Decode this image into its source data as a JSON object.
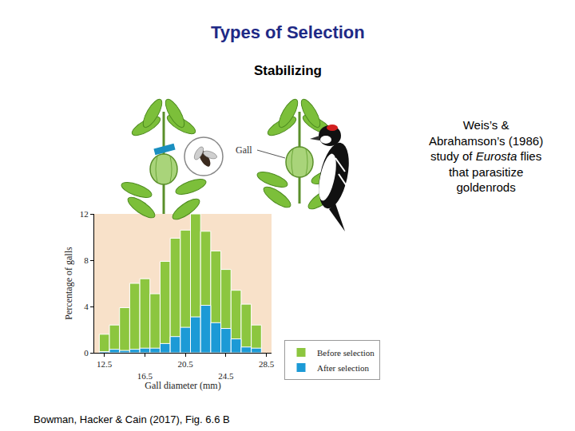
{
  "chart_data": {
    "type": "histogram",
    "x_label": "Gall diameter (mm)",
    "y_label": "Percentage of galls",
    "bins": [
      12,
      13,
      14,
      15,
      16,
      17,
      18,
      19,
      20,
      21,
      22,
      23,
      24,
      25,
      26,
      27,
      28
    ],
    "series": [
      {
        "name": "Before selection",
        "color": "#8cc63f",
        "values": [
          1.6,
          2.4,
          3.9,
          6.0,
          6.4,
          5.1,
          7.9,
          9.9,
          10.6,
          12,
          10.5,
          8.8,
          7.2,
          5.4,
          4.2,
          2.4
        ]
      },
      {
        "name": "After selection",
        "color": "#1c9ad6",
        "values": [
          0.1,
          0.3,
          0.2,
          0.3,
          0.4,
          0.4,
          0.8,
          1.4,
          2.2,
          3.1,
          4.1,
          2.6,
          2.1,
          1.2,
          0.5,
          0.4
        ]
      }
    ],
    "xlim": [
      11.5,
      29
    ],
    "xticks": [
      12.5,
      16.5,
      20.5,
      24.5,
      28.5
    ],
    "ylim": [
      0,
      12
    ],
    "yticks": [
      0,
      4,
      8,
      12
    ],
    "grid": false,
    "legend": "right"
  },
  "slide": {
    "title": "Types of Selection",
    "subtitle": "Stabilizing",
    "note_lines": [
      "Weis’s &",
      "Abrahamson’s (1986)",
      "study of Eurosta flies",
      "that parasitize",
      "goldenrods"
    ],
    "note_italic": "Eurosta",
    "illustration_label": "Gall",
    "citation": "Bowman, Hacker & Cain (2017), Fig. 6.6 B"
  }
}
